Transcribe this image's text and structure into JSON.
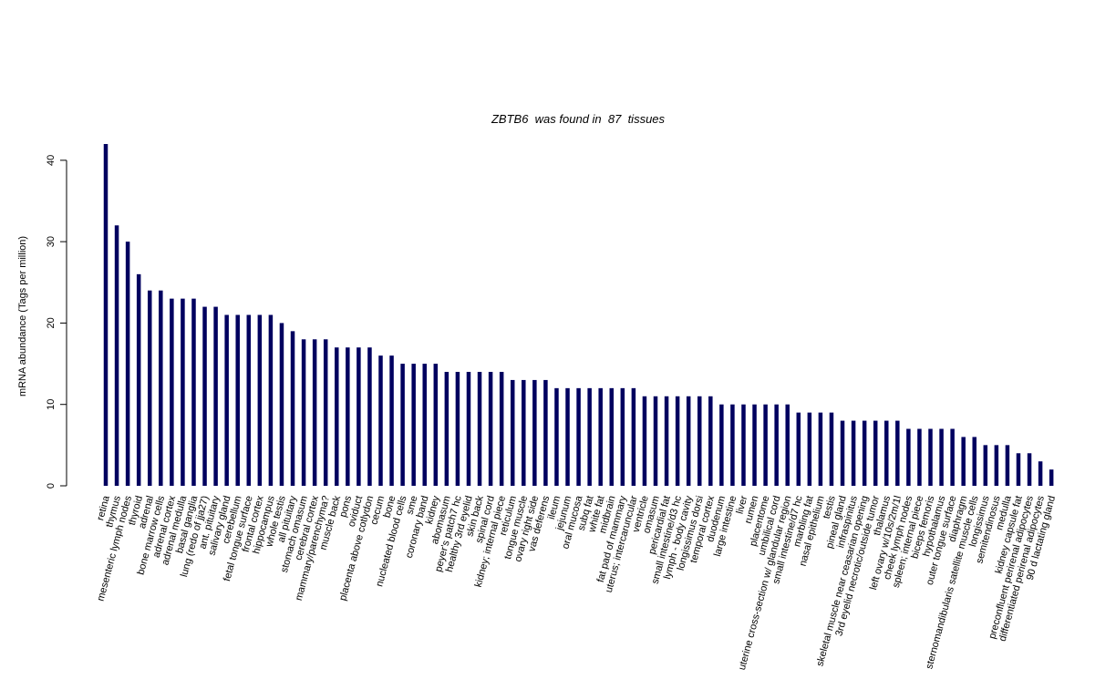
{
  "chart_data": {
    "type": "bar",
    "title_parts": [
      "ZBTB6",
      "was found in",
      "87",
      "tissues"
    ],
    "title": "ZBTB6  was found in  87  tissues",
    "ylabel": "mRNA abundance (Tags per million)",
    "xlabel": "",
    "ylim": [
      0,
      42
    ],
    "yticks": [
      0,
      10,
      20,
      30,
      40
    ],
    "bar_color": "#00005f",
    "categories": [
      "retina",
      "thymus",
      "mesenteric lymph nodes",
      "thyroid",
      "adrenal",
      "bone marrow cells",
      "adrenal cortex",
      "adrenal medulla",
      "basal ganglia",
      "lung (redo of jja27)",
      "ant. pituitary",
      "salivary gland",
      "cerebellum",
      "fetal tongue surface",
      "frontal cortex",
      "hippocampus",
      "whole testis",
      "all pituitary",
      "stomach omasum",
      "cerebral cortex",
      "mammary/parenchyma?",
      "muscle back",
      "pons",
      "oviduct",
      "placenta above cotlydon",
      "cecum",
      "bone",
      "nucleated blood cells",
      "sme",
      "coronary band",
      "kidney",
      "abomasum",
      "peyer's patch7 hc",
      "healthy 3rd eyelid",
      "skin back",
      "spinal cord",
      "kidney; internal piece",
      "reticulum",
      "tongue muscle",
      "ovary right side",
      "vas deferens",
      "ileum",
      "jejunum",
      "oral mucosa",
      "subq fat",
      "white fat",
      "midbrain",
      "fat pad of mammary",
      "uterus; intercaruncular",
      "ventricle",
      "omasum",
      "pericardial fat",
      "small intestine/d3 hc",
      "lymph - body cavity",
      "longissimus dorsi",
      "temporal cortex",
      "duodenum",
      "large intestine",
      "liver",
      "rumen",
      "placentome",
      "umbilical cord",
      "uterine cross-section w/ glandular region",
      "small intestine/d7 hc",
      "marbling fat",
      "nasal epithelium",
      "testis",
      "pineal gland",
      "infraspinitus",
      "skeletal muscle near ceasarian opening",
      "3rd eyelid necrotic/outside tumor",
      "thalamus",
      "left ovary w/10s/2m/1l",
      "cheek lymph nodes",
      "spleen; internal piece",
      "biceps femoris",
      "hypothalamus",
      "outer tongue surface",
      "diaphragm",
      "sternomandibularis satellite muscle cells",
      "longissimus",
      "semitendinosus",
      "medulla",
      "kidney capsule fat",
      "preconfluent perirenal adipocytes",
      "differentiated perirenal adipocytes",
      "90 d lactating gland"
    ],
    "values": [
      42,
      32,
      30,
      26,
      24,
      24,
      23,
      23,
      23,
      22,
      22,
      21,
      21,
      21,
      21,
      21,
      20,
      19,
      18,
      18,
      18,
      17,
      17,
      17,
      17,
      16,
      16,
      15,
      15,
      15,
      15,
      14,
      14,
      14,
      14,
      14,
      14,
      13,
      13,
      13,
      13,
      12,
      12,
      12,
      12,
      12,
      12,
      12,
      12,
      11,
      11,
      11,
      11,
      11,
      11,
      11,
      10,
      10,
      10,
      10,
      10,
      10,
      10,
      9,
      9,
      9,
      9,
      8,
      8,
      8,
      8,
      8,
      8,
      7,
      7,
      7,
      7,
      7,
      6,
      6,
      5,
      5,
      5,
      4,
      4,
      3,
      2
    ]
  }
}
